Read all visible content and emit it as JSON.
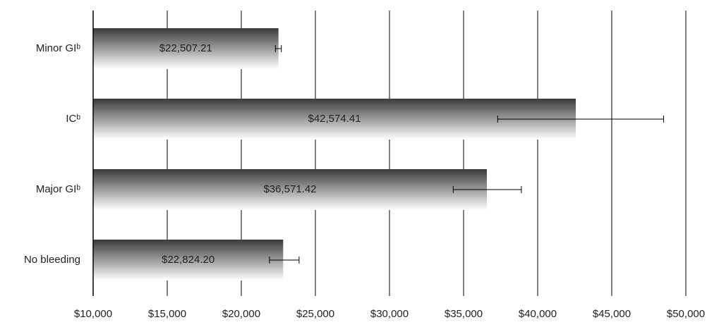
{
  "chart_data": {
    "type": "bar",
    "orientation": "horizontal",
    "categories": [
      "Minor GIᵇ",
      "ICᵇ",
      "Major GIᵇ",
      "No bleeding"
    ],
    "values": [
      22507.21,
      42574.41,
      36571.42,
      22824.2
    ],
    "value_labels": [
      "$22,507.21",
      "$42,574.41",
      "$36,571.42",
      "$22,824.20"
    ],
    "error_bars": [
      {
        "low": 22300,
        "high": 22700
      },
      {
        "low": 37300,
        "high": 48500
      },
      {
        "low": 34300,
        "high": 38900
      },
      {
        "low": 21900,
        "high": 23900
      }
    ],
    "color": "#3a3a3a",
    "xlim": [
      10000,
      50000
    ],
    "xticks": [
      {
        "value": 10000,
        "label": "$10,000"
      },
      {
        "value": 15000,
        "label": "$15,000"
      },
      {
        "value": 20000,
        "label": "$20,000"
      },
      {
        "value": 25000,
        "label": "$25,000"
      },
      {
        "value": 30000,
        "label": "$30,000"
      },
      {
        "value": 35000,
        "label": "$35,000"
      },
      {
        "value": 40000,
        "label": "$40,000"
      },
      {
        "value": 45000,
        "label": "$45,000"
      },
      {
        "value": 50000,
        "label": "$50,000"
      }
    ],
    "grid": true
  }
}
